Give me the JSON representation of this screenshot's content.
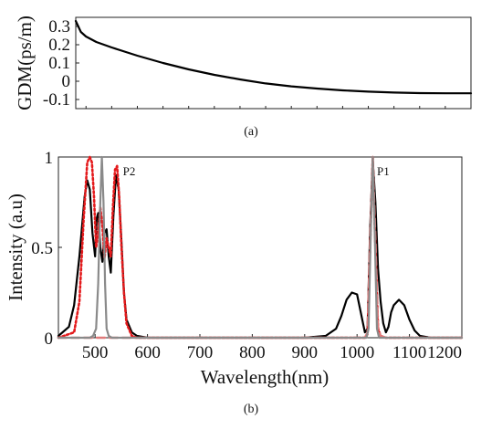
{
  "chart_data": [
    {
      "type": "line",
      "panel_label": "(a)",
      "ylabel": "GDM(ps/m)",
      "xlabel": "",
      "xlim": [
        430,
        1200
      ],
      "ylim": [
        -0.15,
        0.35
      ],
      "y_ticks": [
        "0.3",
        "0.2",
        "0.1",
        "0",
        "-0.1"
      ],
      "x_tick_labels_shown": false,
      "grid": false,
      "series": [
        {
          "color": "#000000",
          "x": [
            430,
            440,
            450,
            470,
            500,
            550,
            600,
            650,
            700,
            750,
            800,
            850,
            900,
            950,
            1000,
            1050,
            1100,
            1150,
            1200
          ],
          "y": [
            0.33,
            0.27,
            0.245,
            0.215,
            0.185,
            0.14,
            0.1,
            0.065,
            0.035,
            0.01,
            -0.012,
            -0.028,
            -0.04,
            -0.05,
            -0.057,
            -0.062,
            -0.065,
            -0.066,
            -0.066
          ]
        }
      ]
    },
    {
      "type": "line",
      "panel_label": "(b)",
      "xlabel": "Wavelength(nm)",
      "ylabel": "Intensity (a.u)",
      "xlim": [
        430,
        1200
      ],
      "ylim": [
        0,
        1
      ],
      "x_ticks": [
        500,
        600,
        700,
        800,
        900,
        1000,
        1100,
        1200
      ],
      "y_ticks": [
        "0",
        "0.5",
        "1"
      ],
      "grid": false,
      "annotations": [
        {
          "text": "P2",
          "x": 565,
          "y": 0.9
        },
        {
          "text": "P1",
          "x": 1050,
          "y": 0.9
        }
      ],
      "series": [
        {
          "color": "#000000",
          "style": "solid",
          "x": [
            430,
            450,
            460,
            470,
            480,
            485,
            490,
            495,
            500,
            503,
            506,
            510,
            514,
            518,
            522,
            526,
            530,
            535,
            540,
            545,
            550,
            555,
            560,
            570,
            580,
            600,
            700,
            800,
            900,
            940,
            960,
            970,
            980,
            990,
            1000,
            1010,
            1015,
            1020,
            1025,
            1030,
            1035,
            1040,
            1045,
            1050,
            1055,
            1060,
            1065,
            1070,
            1080,
            1090,
            1100,
            1110,
            1120,
            1140,
            1160,
            1200
          ],
          "y": [
            0.01,
            0.06,
            0.18,
            0.45,
            0.78,
            0.87,
            0.82,
            0.58,
            0.45,
            0.66,
            0.69,
            0.5,
            0.42,
            0.58,
            0.6,
            0.45,
            0.36,
            0.68,
            0.9,
            0.82,
            0.55,
            0.25,
            0.1,
            0.03,
            0.01,
            0,
            0,
            0,
            0,
            0.01,
            0.05,
            0.12,
            0.21,
            0.25,
            0.24,
            0.1,
            0.03,
            0.05,
            0.6,
            0.98,
            0.75,
            0.38,
            0.2,
            0.08,
            0.03,
            0.06,
            0.14,
            0.18,
            0.21,
            0.18,
            0.1,
            0.04,
            0.01,
            0,
            0,
            0
          ]
        },
        {
          "color": "#e41a1c",
          "style": "dotted",
          "x": [
            430,
            460,
            470,
            478,
            485,
            490,
            494,
            498,
            502,
            506,
            510,
            514,
            518,
            522,
            526,
            530,
            534,
            538,
            542,
            546,
            550,
            555,
            560,
            570,
            580,
            600,
            700,
            800,
            900,
            1000,
            1015,
            1020,
            1025,
            1030,
            1035,
            1040,
            1045,
            1055,
            1100,
            1200
          ],
          "y": [
            0,
            0.03,
            0.2,
            0.65,
            0.97,
            1.0,
            0.97,
            0.78,
            0.5,
            0.58,
            0.72,
            0.62,
            0.44,
            0.55,
            0.5,
            0.45,
            0.72,
            0.93,
            0.95,
            0.78,
            0.52,
            0.25,
            0.08,
            0.01,
            0,
            0,
            0,
            0,
            0,
            0,
            0,
            0.02,
            0.5,
            1.0,
            0.5,
            0.05,
            0.01,
            0,
            0,
            0
          ]
        },
        {
          "color": "#e07a7a",
          "style": "dashed",
          "x": [
            430,
            900,
            1000,
            1015,
            1020,
            1025,
            1030,
            1035,
            1040,
            1045,
            1055,
            1200
          ],
          "y": [
            0,
            0,
            0,
            0,
            0.03,
            0.55,
            1.0,
            0.55,
            0.06,
            0.01,
            0,
            0
          ]
        },
        {
          "color": "#8a8a8a",
          "style": "solid",
          "x": [
            430,
            490,
            496,
            502,
            506,
            510,
            513,
            516,
            519,
            522,
            526,
            532,
            540,
            600,
            900,
            1000,
            1018,
            1022,
            1026,
            1030,
            1034,
            1038,
            1042,
            1060,
            1200
          ],
          "y": [
            0,
            0,
            0.01,
            0.05,
            0.3,
            0.75,
            1.0,
            0.75,
            0.3,
            0.05,
            0.01,
            0,
            0,
            0,
            0,
            0,
            0,
            0.05,
            0.55,
            1.0,
            0.55,
            0.05,
            0,
            0,
            0
          ]
        }
      ]
    }
  ]
}
